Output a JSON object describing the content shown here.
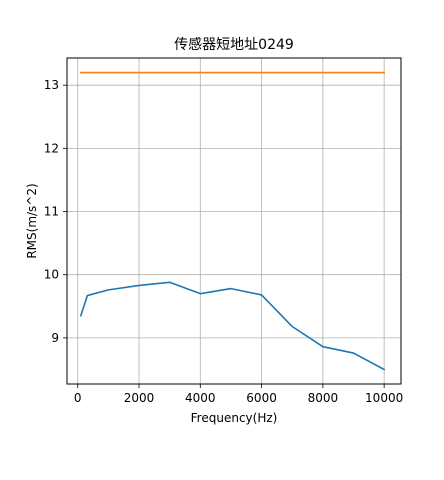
{
  "chart_data": {
    "type": "line",
    "title": "传感器短地址0249",
    "xlabel": "Frequency(Hz)",
    "ylabel": "RMS(m/s^2)",
    "xlim": [
      -350,
      10550
    ],
    "ylim": [
      8.27,
      13.43
    ],
    "xticks": [
      0,
      2000,
      4000,
      6000,
      8000,
      10000
    ],
    "yticks": [
      9,
      10,
      11,
      12,
      13
    ],
    "grid": true,
    "series": [
      {
        "color": "#1f77b4",
        "x": [
          100,
          315,
          1000,
          2000,
          3000,
          4000,
          5000,
          6000,
          7000,
          8000,
          9000,
          10000
        ],
        "y": [
          9.35,
          9.67,
          9.76,
          9.83,
          9.88,
          9.7,
          9.78,
          9.68,
          9.18,
          8.86,
          8.76,
          8.5
        ]
      },
      {
        "color": "#ff7f0e",
        "x": [
          100,
          10000
        ],
        "y": [
          13.2,
          13.2
        ]
      }
    ]
  }
}
